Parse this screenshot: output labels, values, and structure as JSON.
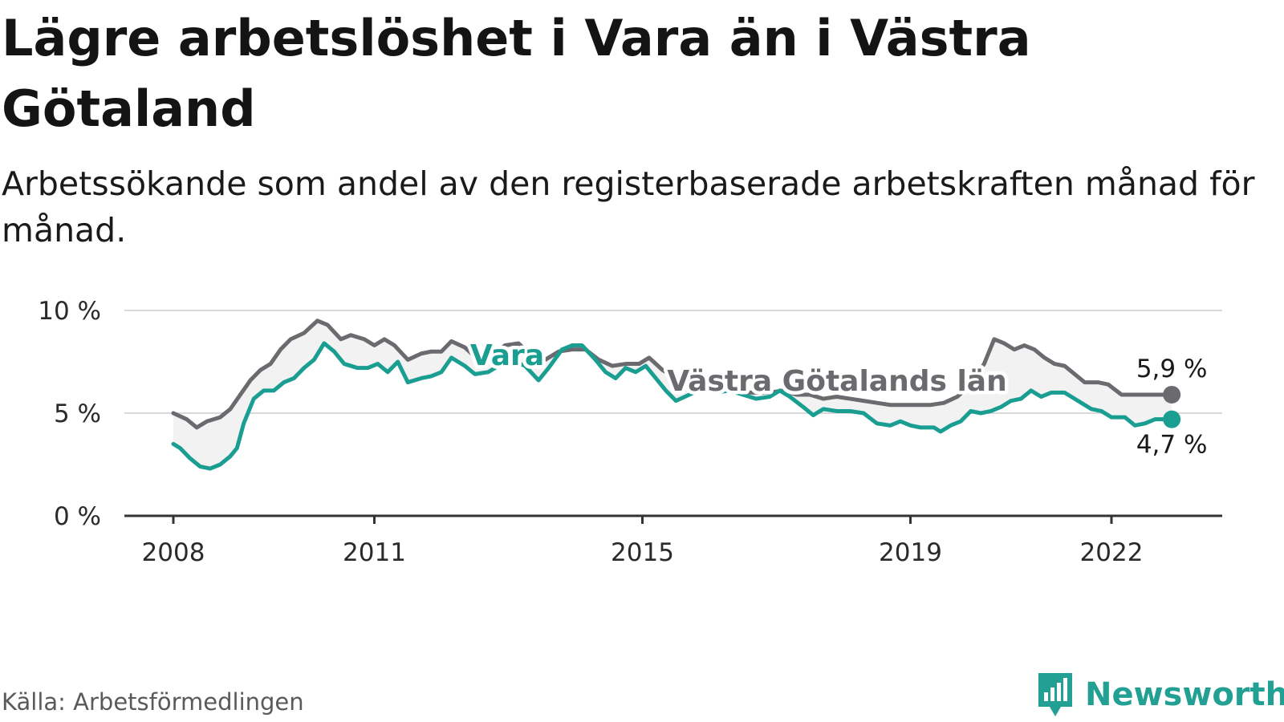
{
  "title": "Lägre arbetslöshet i Vara än i Västra Götaland",
  "subtitle": "Arbetssökande som andel av den registerbaserade arbetskraften månad för månad.",
  "source": "Källa: Arbetsförmedlingen",
  "brand": {
    "name": "Newsworthy",
    "icon": "newsworthy-logo-icon"
  },
  "colors": {
    "vara": "#1a9e92",
    "vgl": "#6b6a6e",
    "grid": "#d9d9d9",
    "axis": "#333333",
    "fill": "#f2f2f2"
  },
  "chart_data": {
    "type": "line",
    "ylim": [
      0,
      10
    ],
    "xlim": [
      2008,
      2023.3
    ],
    "y_ticks": [
      {
        "value": 0,
        "label": "0 %"
      },
      {
        "value": 5,
        "label": "5 %"
      },
      {
        "value": 10,
        "label": "10 %"
      }
    ],
    "x_ticks": [
      {
        "value": 2008,
        "label": "2008"
      },
      {
        "value": 2011,
        "label": "2011"
      },
      {
        "value": 2015,
        "label": "2015"
      },
      {
        "value": 2019,
        "label": "2019"
      },
      {
        "value": 2022,
        "label": "2022"
      }
    ],
    "series": [
      {
        "name": "Västra Götalands län",
        "key": "vgl",
        "label": "Västra Götalands län",
        "end_label": "5,9 %",
        "points": [
          [
            2008.0,
            5.0
          ],
          [
            2008.2,
            4.7
          ],
          [
            2008.35,
            4.3
          ],
          [
            2008.5,
            4.6
          ],
          [
            2008.7,
            4.8
          ],
          [
            2008.85,
            5.2
          ],
          [
            2009.0,
            5.9
          ],
          [
            2009.15,
            6.6
          ],
          [
            2009.3,
            7.1
          ],
          [
            2009.45,
            7.4
          ],
          [
            2009.6,
            8.1
          ],
          [
            2009.75,
            8.6
          ],
          [
            2009.95,
            8.9
          ],
          [
            2010.15,
            9.5
          ],
          [
            2010.3,
            9.3
          ],
          [
            2010.5,
            8.6
          ],
          [
            2010.65,
            8.8
          ],
          [
            2010.85,
            8.6
          ],
          [
            2011.0,
            8.3
          ],
          [
            2011.15,
            8.6
          ],
          [
            2011.3,
            8.3
          ],
          [
            2011.5,
            7.6
          ],
          [
            2011.7,
            7.9
          ],
          [
            2011.85,
            8.0
          ],
          [
            2012.0,
            8.0
          ],
          [
            2012.15,
            8.5
          ],
          [
            2012.35,
            8.2
          ],
          [
            2012.55,
            7.6
          ],
          [
            2012.75,
            7.8
          ],
          [
            2012.95,
            8.3
          ],
          [
            2013.15,
            8.4
          ],
          [
            2013.35,
            7.8
          ],
          [
            2013.55,
            7.6
          ],
          [
            2013.75,
            8.0
          ],
          [
            2013.95,
            8.1
          ],
          [
            2014.15,
            8.1
          ],
          [
            2014.35,
            7.6
          ],
          [
            2014.55,
            7.3
          ],
          [
            2014.75,
            7.4
          ],
          [
            2014.95,
            7.4
          ],
          [
            2015.1,
            7.7
          ],
          [
            2015.3,
            7.1
          ],
          [
            2015.5,
            6.7
          ],
          [
            2015.7,
            6.5
          ],
          [
            2015.9,
            6.4
          ],
          [
            2016.1,
            6.4
          ],
          [
            2016.3,
            6.1
          ],
          [
            2016.5,
            6.0
          ],
          [
            2016.7,
            6.0
          ],
          [
            2016.9,
            6.0
          ],
          [
            2017.1,
            6.1
          ],
          [
            2017.3,
            5.9
          ],
          [
            2017.5,
            5.9
          ],
          [
            2017.7,
            5.7
          ],
          [
            2017.9,
            5.8
          ],
          [
            2018.1,
            5.7
          ],
          [
            2018.3,
            5.6
          ],
          [
            2018.5,
            5.5
          ],
          [
            2018.7,
            5.4
          ],
          [
            2018.9,
            5.4
          ],
          [
            2019.1,
            5.4
          ],
          [
            2019.3,
            5.4
          ],
          [
            2019.5,
            5.5
          ],
          [
            2019.7,
            5.8
          ],
          [
            2019.9,
            6.4
          ],
          [
            2020.1,
            7.4
          ],
          [
            2020.25,
            8.6
          ],
          [
            2020.4,
            8.4
          ],
          [
            2020.55,
            8.1
          ],
          [
            2020.7,
            8.3
          ],
          [
            2020.85,
            8.1
          ],
          [
            2021.0,
            7.7
          ],
          [
            2021.15,
            7.4
          ],
          [
            2021.3,
            7.3
          ],
          [
            2021.45,
            6.9
          ],
          [
            2021.6,
            6.5
          ],
          [
            2021.8,
            6.5
          ],
          [
            2021.95,
            6.4
          ],
          [
            2022.15,
            5.9
          ],
          [
            2022.4,
            5.9
          ],
          [
            2022.6,
            5.9
          ],
          [
            2022.9,
            5.9
          ]
        ]
      },
      {
        "name": "Vara",
        "key": "vara",
        "label": "Vara",
        "end_label": "4,7 %",
        "points": [
          [
            2008.0,
            3.5
          ],
          [
            2008.1,
            3.3
          ],
          [
            2008.25,
            2.8
          ],
          [
            2008.4,
            2.4
          ],
          [
            2008.55,
            2.3
          ],
          [
            2008.7,
            2.5
          ],
          [
            2008.85,
            2.9
          ],
          [
            2008.95,
            3.3
          ],
          [
            2009.05,
            4.5
          ],
          [
            2009.2,
            5.7
          ],
          [
            2009.35,
            6.1
          ],
          [
            2009.5,
            6.1
          ],
          [
            2009.65,
            6.5
          ],
          [
            2009.8,
            6.7
          ],
          [
            2009.95,
            7.2
          ],
          [
            2010.1,
            7.6
          ],
          [
            2010.25,
            8.4
          ],
          [
            2010.4,
            8.0
          ],
          [
            2010.55,
            7.4
          ],
          [
            2010.75,
            7.2
          ],
          [
            2010.9,
            7.2
          ],
          [
            2011.05,
            7.4
          ],
          [
            2011.2,
            7.0
          ],
          [
            2011.35,
            7.5
          ],
          [
            2011.5,
            6.5
          ],
          [
            2011.7,
            6.7
          ],
          [
            2011.85,
            6.8
          ],
          [
            2012.0,
            7.0
          ],
          [
            2012.15,
            7.7
          ],
          [
            2012.35,
            7.3
          ],
          [
            2012.5,
            6.9
          ],
          [
            2012.7,
            7.0
          ],
          [
            2012.9,
            7.4
          ],
          [
            2013.1,
            7.5
          ],
          [
            2013.25,
            7.3
          ],
          [
            2013.45,
            6.6
          ],
          [
            2013.6,
            7.2
          ],
          [
            2013.8,
            8.1
          ],
          [
            2013.95,
            8.3
          ],
          [
            2014.1,
            8.3
          ],
          [
            2014.3,
            7.6
          ],
          [
            2014.45,
            7.0
          ],
          [
            2014.6,
            6.7
          ],
          [
            2014.75,
            7.2
          ],
          [
            2014.9,
            7.0
          ],
          [
            2015.05,
            7.3
          ],
          [
            2015.2,
            6.7
          ],
          [
            2015.35,
            6.1
          ],
          [
            2015.5,
            5.6
          ],
          [
            2015.7,
            5.9
          ],
          [
            2015.9,
            6.2
          ],
          [
            2016.1,
            6.0
          ],
          [
            2016.3,
            6.1
          ],
          [
            2016.5,
            5.9
          ],
          [
            2016.7,
            5.7
          ],
          [
            2016.9,
            5.8
          ],
          [
            2017.05,
            6.1
          ],
          [
            2017.2,
            5.8
          ],
          [
            2017.4,
            5.3
          ],
          [
            2017.55,
            4.9
          ],
          [
            2017.7,
            5.2
          ],
          [
            2017.9,
            5.1
          ],
          [
            2018.1,
            5.1
          ],
          [
            2018.3,
            5.0
          ],
          [
            2018.5,
            4.5
          ],
          [
            2018.7,
            4.4
          ],
          [
            2018.85,
            4.6
          ],
          [
            2019.0,
            4.4
          ],
          [
            2019.15,
            4.3
          ],
          [
            2019.35,
            4.3
          ],
          [
            2019.45,
            4.1
          ],
          [
            2019.6,
            4.4
          ],
          [
            2019.75,
            4.6
          ],
          [
            2019.9,
            5.1
          ],
          [
            2020.05,
            5.0
          ],
          [
            2020.2,
            5.1
          ],
          [
            2020.35,
            5.3
          ],
          [
            2020.5,
            5.6
          ],
          [
            2020.65,
            5.7
          ],
          [
            2020.8,
            6.1
          ],
          [
            2020.95,
            5.8
          ],
          [
            2021.1,
            6.0
          ],
          [
            2021.3,
            6.0
          ],
          [
            2021.5,
            5.6
          ],
          [
            2021.7,
            5.2
          ],
          [
            2021.85,
            5.1
          ],
          [
            2022.0,
            4.8
          ],
          [
            2022.2,
            4.8
          ],
          [
            2022.35,
            4.4
          ],
          [
            2022.5,
            4.5
          ],
          [
            2022.65,
            4.7
          ],
          [
            2022.9,
            4.7
          ]
        ]
      }
    ]
  }
}
